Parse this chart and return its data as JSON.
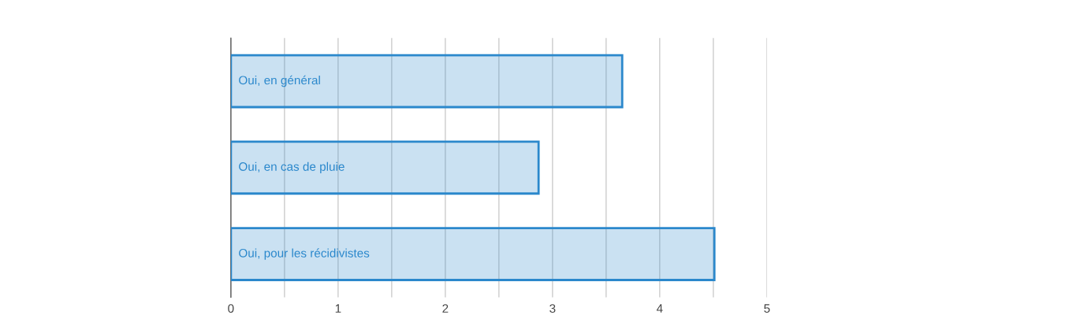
{
  "chart_data": {
    "type": "bar",
    "orientation": "horizontal",
    "categories": [
      "Oui, en général",
      "Oui, en cas de pluie",
      "Oui, pour les récidivistes"
    ],
    "values": [
      3.65,
      2.87,
      4.51
    ],
    "color": "#2b88cc",
    "xlim": [
      0,
      5
    ],
    "xticks": [
      0,
      {
        "value": 0.5,
        "label": null
      },
      1,
      {
        "value": 1.5,
        "label": null
      },
      2,
      {
        "value": 2.5,
        "label": null
      },
      3,
      {
        "value": 3.5,
        "label": null
      },
      4,
      {
        "value": 4.5,
        "label": null
      },
      5
    ],
    "grid": "x"
  }
}
